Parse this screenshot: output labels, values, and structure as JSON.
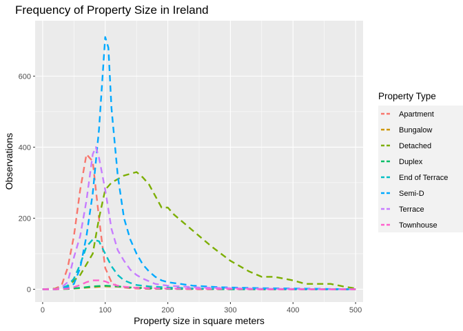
{
  "chart_data": {
    "type": "line",
    "title": "Frequency of Property Size in Ireland",
    "xlabel": "Property size in square meters",
    "ylabel": "Observations",
    "xlim": [
      -12,
      512
    ],
    "ylim": [
      -36,
      756
    ],
    "xticks": [
      0,
      100,
      200,
      300,
      400,
      500
    ],
    "yticks": [
      0,
      200,
      400,
      600
    ],
    "grid": true,
    "line_style": "dashed",
    "legend": {
      "title": "Property Type",
      "position": "right"
    },
    "series": [
      {
        "name": "Apartment",
        "color": "#F8766D",
        "x": [
          0,
          20,
          30,
          40,
          50,
          60,
          70,
          80,
          90,
          100,
          110,
          120,
          130,
          140,
          150,
          170,
          200,
          250,
          300,
          350,
          400,
          450,
          500
        ],
        "y": [
          0,
          2,
          10,
          60,
          150,
          280,
          380,
          360,
          200,
          60,
          20,
          8,
          5,
          3,
          2,
          1,
          1,
          0,
          0,
          0,
          0,
          0,
          0
        ]
      },
      {
        "name": "Bungalow",
        "color": "#CD9600",
        "x": [
          0,
          20,
          40,
          60,
          80,
          100,
          120,
          140,
          160,
          200,
          250,
          300,
          350,
          400,
          450,
          500
        ],
        "y": [
          0,
          0,
          1,
          3,
          6,
          8,
          7,
          5,
          4,
          2,
          1,
          1,
          0,
          0,
          0,
          0
        ]
      },
      {
        "name": "Detached",
        "color": "#7CAE00",
        "x": [
          0,
          20,
          40,
          60,
          80,
          90,
          100,
          110,
          130,
          150,
          160,
          170,
          190,
          200,
          210,
          230,
          250,
          270,
          300,
          330,
          350,
          370,
          400,
          420,
          440,
          460,
          480,
          500
        ],
        "y": [
          0,
          1,
          8,
          40,
          100,
          200,
          280,
          300,
          320,
          330,
          315,
          295,
          230,
          230,
          210,
          180,
          150,
          120,
          80,
          50,
          35,
          35,
          25,
          15,
          15,
          15,
          8,
          2
        ]
      },
      {
        "name": "Duplex",
        "color": "#00BE67",
        "x": [
          0,
          20,
          40,
          60,
          80,
          100,
          120,
          140,
          160,
          180,
          200,
          250,
          300,
          350,
          400,
          450,
          500
        ],
        "y": [
          0,
          0,
          1,
          4,
          8,
          10,
          8,
          5,
          3,
          2,
          1,
          1,
          0,
          0,
          0,
          0,
          0
        ]
      },
      {
        "name": "End of Terrace",
        "color": "#00BFC4",
        "x": [
          0,
          20,
          30,
          40,
          50,
          60,
          70,
          80,
          90,
          100,
          110,
          120,
          130,
          140,
          150,
          170,
          200,
          230,
          250,
          300,
          350,
          400,
          450,
          500
        ],
        "y": [
          0,
          0,
          3,
          10,
          30,
          70,
          120,
          140,
          135,
          100,
          65,
          40,
          25,
          18,
          12,
          8,
          5,
          3,
          2,
          1,
          1,
          0,
          0,
          0
        ]
      },
      {
        "name": "Semi-D",
        "color": "#00A9FF",
        "x": [
          0,
          20,
          30,
          40,
          50,
          60,
          70,
          80,
          90,
          100,
          105,
          110,
          120,
          130,
          140,
          150,
          160,
          170,
          180,
          190,
          200,
          220,
          240,
          260,
          280,
          300,
          350,
          400,
          450,
          500
        ],
        "y": [
          0,
          0,
          2,
          5,
          15,
          60,
          150,
          270,
          450,
          710,
          680,
          510,
          320,
          200,
          140,
          100,
          70,
          50,
          35,
          25,
          20,
          15,
          10,
          8,
          6,
          5,
          3,
          2,
          1,
          0
        ]
      },
      {
        "name": "Terrace",
        "color": "#C77CFF",
        "x": [
          0,
          20,
          30,
          40,
          50,
          60,
          70,
          80,
          85,
          90,
          100,
          110,
          120,
          130,
          140,
          150,
          160,
          180,
          200,
          250,
          300,
          350,
          400,
          450,
          500
        ],
        "y": [
          0,
          0,
          5,
          20,
          90,
          150,
          250,
          380,
          400,
          370,
          280,
          170,
          110,
          80,
          55,
          40,
          30,
          15,
          10,
          5,
          3,
          1,
          1,
          0,
          0
        ]
      },
      {
        "name": "Townhouse",
        "color": "#FF61CC",
        "x": [
          0,
          20,
          40,
          50,
          60,
          70,
          80,
          90,
          100,
          110,
          120,
          130,
          150,
          170,
          200,
          250,
          300,
          350,
          400,
          450,
          500
        ],
        "y": [
          0,
          0,
          2,
          6,
          12,
          20,
          25,
          25,
          22,
          15,
          10,
          7,
          4,
          3,
          2,
          1,
          1,
          0,
          0,
          0,
          0
        ]
      }
    ]
  },
  "colors": {
    "panel": "#EBEBEB",
    "grid": "#FFFFFF",
    "tick": "#333333"
  }
}
